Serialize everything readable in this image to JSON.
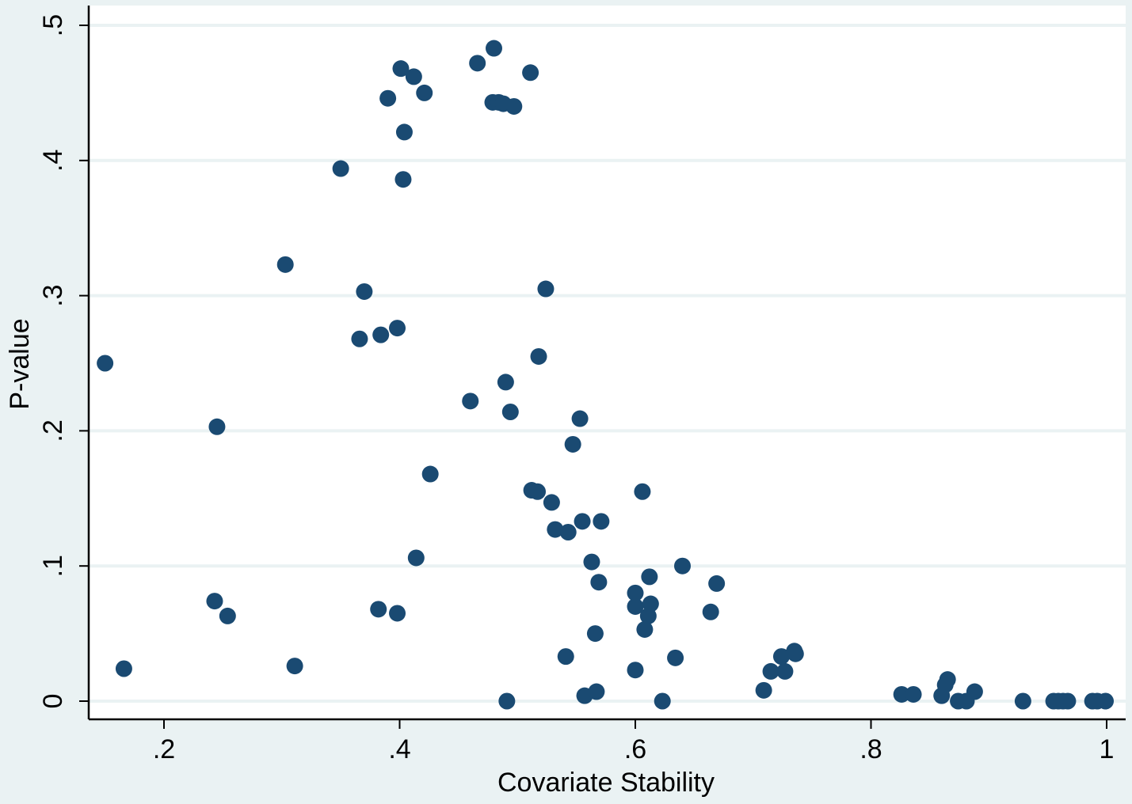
{
  "chart_data": {
    "type": "scatter",
    "xlabel": "Covariate Stability",
    "ylabel": "P-value",
    "xlim": [
      0.14,
      1.02
    ],
    "ylim": [
      -0.015,
      0.515
    ],
    "x_ticks": [
      0.2,
      0.4,
      0.6,
      0.8,
      1.0
    ],
    "x_tick_labels": [
      ".2",
      ".4",
      ".6",
      ".8",
      "1"
    ],
    "y_ticks": [
      0,
      0.1,
      0.2,
      0.3,
      0.4,
      0.5
    ],
    "y_tick_labels": [
      "0",
      ".1",
      ".2",
      ".3",
      ".4",
      ".5"
    ],
    "grid": "horizontal",
    "legend": "none",
    "colors": {
      "marker": "#1a4a72",
      "background": "#eaf2f3",
      "plot_background": "#ffffff",
      "grid": "#eaf2f3",
      "axis": "#000000"
    },
    "points": [
      {
        "x": 0.15,
        "y": 0.25
      },
      {
        "x": 0.166,
        "y": 0.024
      },
      {
        "x": 0.243,
        "y": 0.074
      },
      {
        "x": 0.245,
        "y": 0.203
      },
      {
        "x": 0.254,
        "y": 0.063
      },
      {
        "x": 0.303,
        "y": 0.323
      },
      {
        "x": 0.311,
        "y": 0.026
      },
      {
        "x": 0.35,
        "y": 0.394
      },
      {
        "x": 0.366,
        "y": 0.268
      },
      {
        "x": 0.37,
        "y": 0.303
      },
      {
        "x": 0.382,
        "y": 0.068
      },
      {
        "x": 0.384,
        "y": 0.271
      },
      {
        "x": 0.39,
        "y": 0.446
      },
      {
        "x": 0.398,
        "y": 0.276
      },
      {
        "x": 0.398,
        "y": 0.065
      },
      {
        "x": 0.401,
        "y": 0.468
      },
      {
        "x": 0.403,
        "y": 0.386
      },
      {
        "x": 0.404,
        "y": 0.421
      },
      {
        "x": 0.412,
        "y": 0.462
      },
      {
        "x": 0.414,
        "y": 0.106
      },
      {
        "x": 0.421,
        "y": 0.45
      },
      {
        "x": 0.426,
        "y": 0.168
      },
      {
        "x": 0.46,
        "y": 0.222
      },
      {
        "x": 0.466,
        "y": 0.472
      },
      {
        "x": 0.479,
        "y": 0.443
      },
      {
        "x": 0.48,
        "y": 0.483
      },
      {
        "x": 0.484,
        "y": 0.443
      },
      {
        "x": 0.488,
        "y": 0.442
      },
      {
        "x": 0.49,
        "y": 0.236
      },
      {
        "x": 0.491,
        "y": 0.0
      },
      {
        "x": 0.494,
        "y": 0.214
      },
      {
        "x": 0.497,
        "y": 0.44
      },
      {
        "x": 0.511,
        "y": 0.465
      },
      {
        "x": 0.512,
        "y": 0.156
      },
      {
        "x": 0.517,
        "y": 0.155
      },
      {
        "x": 0.518,
        "y": 0.255
      },
      {
        "x": 0.524,
        "y": 0.305
      },
      {
        "x": 0.529,
        "y": 0.147
      },
      {
        "x": 0.532,
        "y": 0.127
      },
      {
        "x": 0.541,
        "y": 0.033
      },
      {
        "x": 0.543,
        "y": 0.125
      },
      {
        "x": 0.547,
        "y": 0.19
      },
      {
        "x": 0.553,
        "y": 0.209
      },
      {
        "x": 0.555,
        "y": 0.133
      },
      {
        "x": 0.557,
        "y": 0.004
      },
      {
        "x": 0.563,
        "y": 0.103
      },
      {
        "x": 0.566,
        "y": 0.05
      },
      {
        "x": 0.567,
        "y": 0.007
      },
      {
        "x": 0.569,
        "y": 0.088
      },
      {
        "x": 0.571,
        "y": 0.133
      },
      {
        "x": 0.6,
        "y": 0.08
      },
      {
        "x": 0.6,
        "y": 0.07
      },
      {
        "x": 0.6,
        "y": 0.023
      },
      {
        "x": 0.606,
        "y": 0.155
      },
      {
        "x": 0.608,
        "y": 0.053
      },
      {
        "x": 0.611,
        "y": 0.063
      },
      {
        "x": 0.612,
        "y": 0.092
      },
      {
        "x": 0.613,
        "y": 0.072
      },
      {
        "x": 0.623,
        "y": 0.0
      },
      {
        "x": 0.634,
        "y": 0.032
      },
      {
        "x": 0.64,
        "y": 0.1
      },
      {
        "x": 0.664,
        "y": 0.066
      },
      {
        "x": 0.669,
        "y": 0.087
      },
      {
        "x": 0.709,
        "y": 0.008
      },
      {
        "x": 0.715,
        "y": 0.022
      },
      {
        "x": 0.724,
        "y": 0.033
      },
      {
        "x": 0.727,
        "y": 0.022
      },
      {
        "x": 0.735,
        "y": 0.037
      },
      {
        "x": 0.736,
        "y": 0.035
      },
      {
        "x": 0.826,
        "y": 0.005
      },
      {
        "x": 0.836,
        "y": 0.005
      },
      {
        "x": 0.86,
        "y": 0.004
      },
      {
        "x": 0.863,
        "y": 0.012
      },
      {
        "x": 0.865,
        "y": 0.016
      },
      {
        "x": 0.874,
        "y": 0.0
      },
      {
        "x": 0.881,
        "y": 0.0
      },
      {
        "x": 0.888,
        "y": 0.007
      },
      {
        "x": 0.929,
        "y": 0.0
      },
      {
        "x": 0.955,
        "y": 0.0
      },
      {
        "x": 0.959,
        "y": 0.0
      },
      {
        "x": 0.963,
        "y": 0.0
      },
      {
        "x": 0.967,
        "y": 0.0
      },
      {
        "x": 0.988,
        "y": 0.0
      },
      {
        "x": 0.992,
        "y": 0.0
      },
      {
        "x": 0.999,
        "y": 0.0
      }
    ]
  }
}
